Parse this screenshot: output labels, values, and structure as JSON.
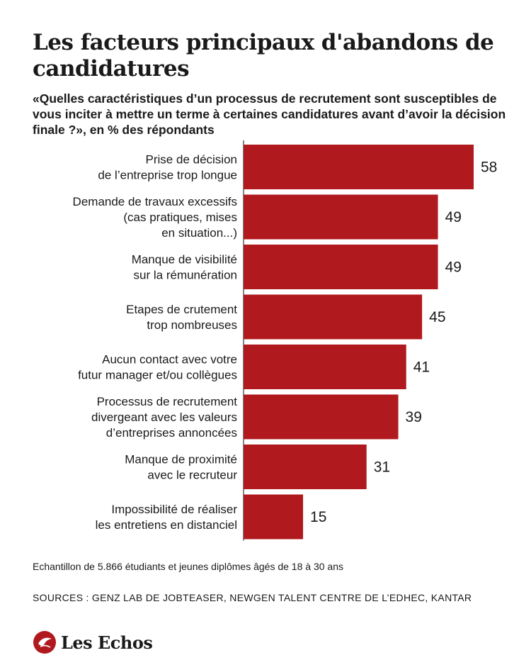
{
  "title": "Les facteurs principaux d'abandons de candidatures",
  "subtitle": "«Quelles caractéristiques d’un processus de recrutement sont susceptibles de vous inciter à mettre un terme à certaines candidatures avant d’avoir la décision finale ?», en % des répondants",
  "note": "Echantillon de 5.866 étudiants et jeunes diplômes âgés de 18 à 30 ans",
  "sources": "SOURCES : GENZ LAB DE JOBTEASER, NEWGEN TALENT CENTRE DE L’EDHEC, KANTAR",
  "brand": "Les Echos",
  "colors": {
    "bar": "#b0191e",
    "text": "#1a1a1a",
    "axis": "#333333"
  },
  "chart_data": {
    "type": "bar",
    "orientation": "horizontal",
    "categories": [
      [
        "Prise de décision",
        "de l’entreprise trop longue"
      ],
      [
        "Demande de travaux excessifs",
        "(cas pratiques, mises",
        "en situation...)"
      ],
      [
        "Manque de visibilité",
        "sur la rémunération"
      ],
      [
        "Etapes de crutement",
        "trop nombreuses"
      ],
      [
        "Aucun contact avec votre",
        "futur manager et/ou collègues"
      ],
      [
        "Processus de recrutement",
        "divergeant avec les valeurs",
        "d’entreprises annoncées"
      ],
      [
        "Manque de proximité",
        "avec le recruteur"
      ],
      [
        "Impossibilité de réaliser",
        "les entretiens en distanciel"
      ]
    ],
    "values": [
      58,
      49,
      49,
      45,
      41,
      39,
      31,
      15
    ],
    "xlim": [
      0,
      58
    ],
    "grid": false,
    "data_labels": true
  }
}
